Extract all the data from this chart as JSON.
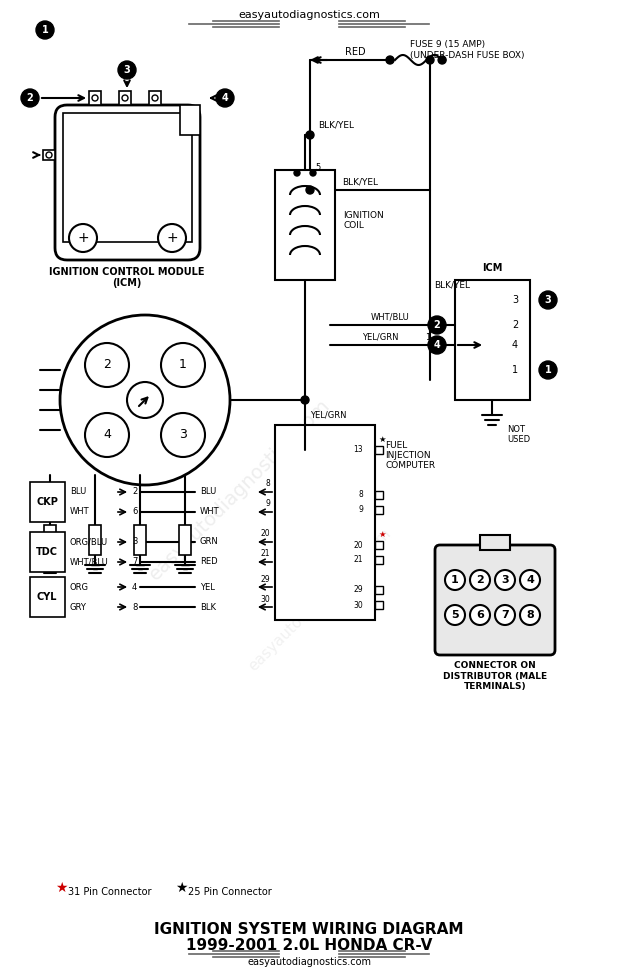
{
  "title_line1": "IGNITION SYSTEM WIRING DIAGRAM",
  "title_line2": "1999-2001 2.0L HONDA CR-V",
  "website": "easyautodiagnostics.com",
  "bg_color": "#ffffff",
  "line_color": "#000000",
  "watermark_color": "#cccccc",
  "red_color": "#cc0000",
  "gray_color": "#666666"
}
